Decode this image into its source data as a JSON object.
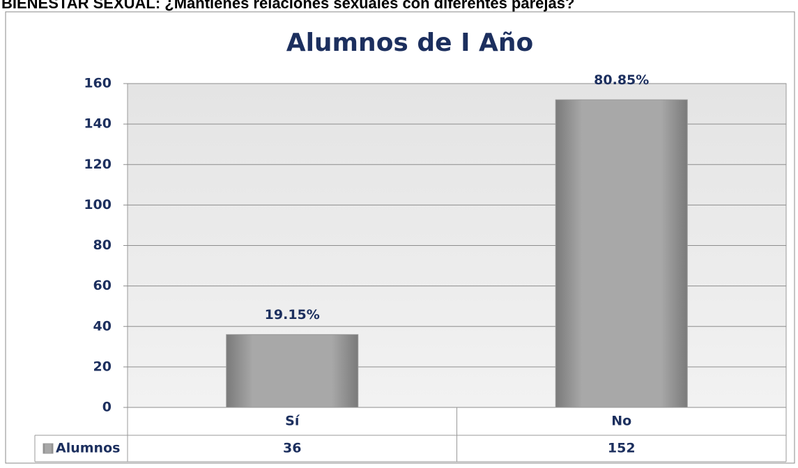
{
  "header": "BIENESTAR SEXUAL: ¿Mantienes relaciones sexuales con diferentes parejas?",
  "chart_data": {
    "type": "bar",
    "title": "Alumnos de I Año",
    "categories": [
      "Sí",
      "No"
    ],
    "series": [
      {
        "name": "Alumnos",
        "color": "#9a9a9a",
        "values": [
          36,
          152
        ]
      }
    ],
    "annotations": [
      "19.15%",
      "80.85%"
    ],
    "ylim": [
      0,
      160
    ],
    "yticks": [
      0,
      20,
      40,
      60,
      80,
      100,
      120,
      140,
      160
    ],
    "grid": true
  }
}
